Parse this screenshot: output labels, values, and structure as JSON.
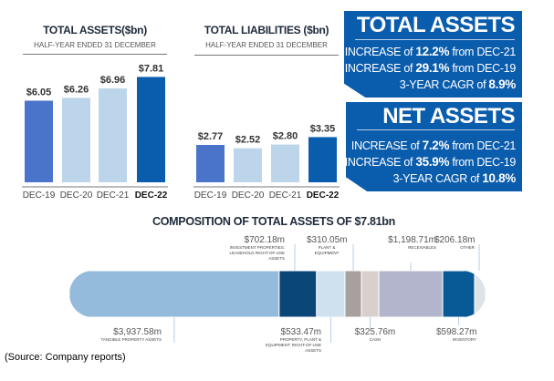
{
  "chart_data": [
    {
      "type": "bar",
      "title": "TOTAL ASSETS($bn)",
      "subtitle": "HALF-YEAR ENDED 31 DECEMBER",
      "categories": [
        "DEC-19",
        "DEC-20",
        "DEC-21",
        "DEC-22"
      ],
      "values": [
        6.05,
        6.26,
        6.96,
        7.81
      ],
      "labels": [
        "$6.05",
        "$6.26",
        "$6.96",
        "$7.81"
      ],
      "colors": [
        "#4a74c9",
        "#bdd5ea",
        "#bdd5ea",
        "#0a5cad"
      ]
    },
    {
      "type": "bar",
      "title": "TOTAL LIABILITIES ($bn)",
      "subtitle": "HALF-YEAR ENDED 31 DECEMBER",
      "categories": [
        "DEC-19",
        "DEC-20",
        "DEC-21",
        "DEC-22"
      ],
      "values": [
        2.77,
        2.52,
        2.8,
        3.35
      ],
      "labels": [
        "$2.77",
        "$2.52",
        "$2.80",
        "$3.35"
      ],
      "colors": [
        "#4a74c9",
        "#bdd5ea",
        "#bdd5ea",
        "#0a5cad"
      ]
    },
    {
      "type": "bar",
      "orientation": "stacked-horizontal",
      "title": "COMPOSITION OF TOTAL ASSETS OF $7.81bn",
      "segments": [
        {
          "value": 3937.58,
          "label": "$3,937.58m",
          "name": "TANGIBLE PROPERTY ASSETS",
          "color": "#95bbdc"
        },
        {
          "value": 702.18,
          "label": "$702.18m",
          "name": "INVESTMENT PROPERTIES: LEASEHOLD RIGHT-OF-USE ASSETS",
          "color": "#0b4679"
        },
        {
          "value": 533.47,
          "label": "$533.47m",
          "name": "PROPERTY, PLANT & EQUIPMENT: RIGHT-OF-USE ASSETS",
          "color": "#cfe0ef"
        },
        {
          "value": 310.05,
          "label": "$310.05m",
          "name": "PLANT & EQUIPMENT",
          "color": "#a7a09c"
        },
        {
          "value": 325.76,
          "label": "$325.76m",
          "name": "CASH",
          "color": "#d9d0ce"
        },
        {
          "value": 1198.71,
          "label": "$1,198.71m",
          "name": "RECEIVABLES",
          "color": "#b2b5cc"
        },
        {
          "value": 598.27,
          "label": "$598.27m",
          "name": "INVENTORY",
          "color": "#085a96"
        },
        {
          "value": 206.18,
          "label": "$206.18m",
          "name": "OTHER",
          "color": "#dde3e6"
        }
      ]
    }
  ],
  "highlights": {
    "total_assets": {
      "title": "TOTAL ASSETS",
      "lines": [
        {
          "pre": "INCREASE of ",
          "val": "12.2%",
          "post": " from DEC-21"
        },
        {
          "pre": "INCREASE of ",
          "val": "29.1%",
          "post": " from DEC-19"
        },
        {
          "pre": "3-YEAR CAGR of ",
          "val": "8.9%",
          "post": ""
        }
      ]
    },
    "net_assets": {
      "title": "NET ASSETS",
      "lines": [
        {
          "pre": "INCREASE of ",
          "val": "7.2%",
          "post": " from DEC-21"
        },
        {
          "pre": "INCREASE of ",
          "val": "35.9%",
          "post": " from DEC-19"
        },
        {
          "pre": "3-YEAR CAGR of ",
          "val": "10.8%",
          "post": ""
        }
      ]
    },
    "color": "#0a5cad"
  },
  "source": "(Source: Company reports)"
}
